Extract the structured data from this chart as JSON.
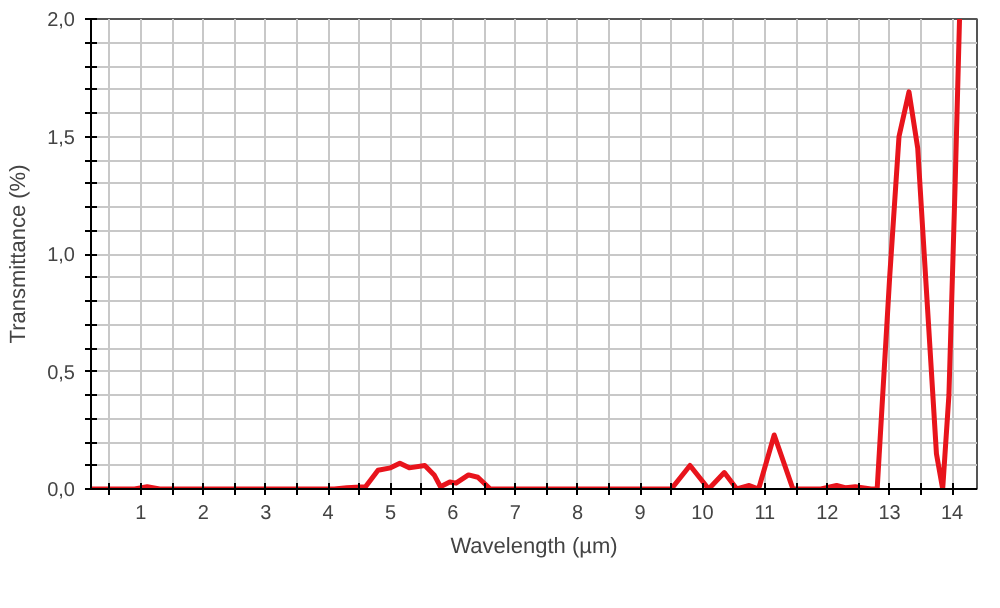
{
  "chart_data": {
    "type": "line",
    "xlabel": "Wavelength (µm)",
    "ylabel": "Transmittance (%)",
    "xlim": [
      0.2,
      14.4
    ],
    "ylim": [
      0,
      2.0
    ],
    "xticks": [
      {
        "value": 0.5,
        "label": null
      },
      1,
      {
        "value": 1.5,
        "label": null
      },
      2,
      {
        "value": 2.5,
        "label": null
      },
      3,
      {
        "value": 3.5,
        "label": null
      },
      4,
      {
        "value": 4.5,
        "label": null
      },
      5,
      {
        "value": 5.5,
        "label": null
      },
      6,
      {
        "value": 6.5,
        "label": null
      },
      7,
      {
        "value": 7.5,
        "label": null
      },
      8,
      {
        "value": 8.5,
        "label": null
      },
      9,
      {
        "value": 9.5,
        "label": null
      },
      10,
      {
        "value": 10.5,
        "label": null
      },
      11,
      {
        "value": 11.5,
        "label": null
      },
      12,
      {
        "value": 12.5,
        "label": null
      },
      13,
      {
        "value": 13.5,
        "label": null
      },
      14
    ],
    "yticks": [
      {
        "value": 0,
        "label": "0,0"
      },
      {
        "value": 0.1,
        "label": null
      },
      {
        "value": 0.2,
        "label": null
      },
      {
        "value": 0.3,
        "label": null
      },
      {
        "value": 0.4,
        "label": null
      },
      {
        "value": 0.5,
        "label": "0,5"
      },
      {
        "value": 0.6,
        "label": null
      },
      {
        "value": 0.7,
        "label": null
      },
      {
        "value": 0.8,
        "label": null
      },
      {
        "value": 0.9,
        "label": null
      },
      {
        "value": 1.0,
        "label": "1,0"
      },
      {
        "value": 1.1,
        "label": null
      },
      {
        "value": 1.2,
        "label": null
      },
      {
        "value": 1.3,
        "label": null
      },
      {
        "value": 1.4,
        "label": null
      },
      {
        "value": 1.5,
        "label": "1,5"
      },
      {
        "value": 1.6,
        "label": null
      },
      {
        "value": 1.7,
        "label": null
      },
      {
        "value": 1.8,
        "label": null
      },
      {
        "value": 1.9,
        "label": null
      },
      {
        "value": 2.0,
        "label": "2,0"
      }
    ],
    "grid": true,
    "line_style": "solid",
    "marker": "none",
    "series": [
      {
        "color": "#e8141c",
        "x": [
          0.2,
          0.9,
          1.1,
          1.3,
          4.1,
          4.3,
          4.6,
          4.8,
          5.0,
          5.15,
          5.3,
          5.55,
          5.7,
          5.8,
          5.95,
          6.05,
          6.25,
          6.4,
          6.6,
          9.5,
          9.8,
          10.1,
          10.35,
          10.55,
          10.75,
          10.9,
          11.15,
          11.45,
          11.9,
          12.15,
          12.3,
          12.45,
          12.7,
          12.8,
          13.0,
          13.15,
          13.31,
          13.45,
          13.6,
          13.75,
          13.85,
          13.95,
          14.05,
          14.12
        ],
        "values": [
          0,
          0,
          0.01,
          0,
          0,
          0.005,
          0.01,
          0.08,
          0.09,
          0.11,
          0.09,
          0.1,
          0.06,
          0.01,
          0.03,
          0.025,
          0.06,
          0.05,
          0,
          0,
          0.1,
          0,
          0.07,
          0,
          0.015,
          0,
          0.23,
          0,
          0,
          0.015,
          0.005,
          0.01,
          0,
          0,
          0.9,
          1.5,
          1.69,
          1.45,
          0.8,
          0.15,
          0,
          0.4,
          1.3,
          2.0
        ]
      }
    ]
  }
}
